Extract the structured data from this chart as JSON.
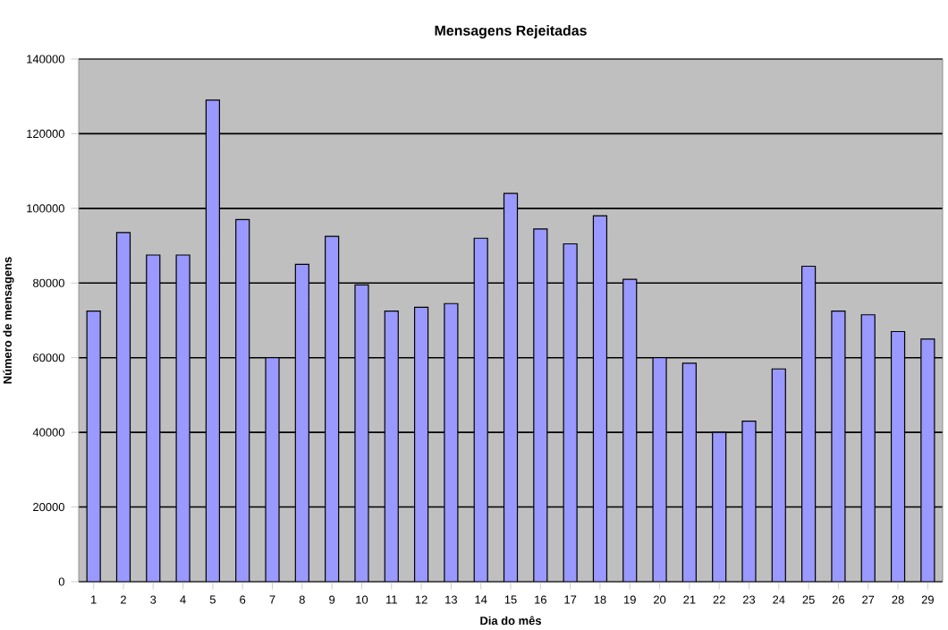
{
  "chart_data": {
    "type": "bar",
    "title": "Mensagens Rejeitadas",
    "xlabel": "Dia do mês",
    "ylabel": "Número de mensagens",
    "categories": [
      "1",
      "2",
      "3",
      "4",
      "5",
      "6",
      "7",
      "8",
      "9",
      "10",
      "11",
      "12",
      "13",
      "14",
      "15",
      "16",
      "17",
      "18",
      "19",
      "20",
      "21",
      "22",
      "23",
      "24",
      "25",
      "26",
      "27",
      "28",
      "29"
    ],
    "values": [
      72500,
      93500,
      87500,
      87500,
      129000,
      97000,
      60000,
      85000,
      92500,
      79500,
      72500,
      73500,
      74500,
      92000,
      104000,
      94500,
      90500,
      98000,
      81000,
      60000,
      58500,
      40000,
      43000,
      57000,
      84500,
      72500,
      71500,
      67000,
      65000
    ],
    "color": "#9999ff",
    "ylim": [
      0,
      140000
    ],
    "yticks": [
      0,
      20000,
      40000,
      60000,
      80000,
      100000,
      120000,
      140000
    ],
    "grid": "y"
  }
}
